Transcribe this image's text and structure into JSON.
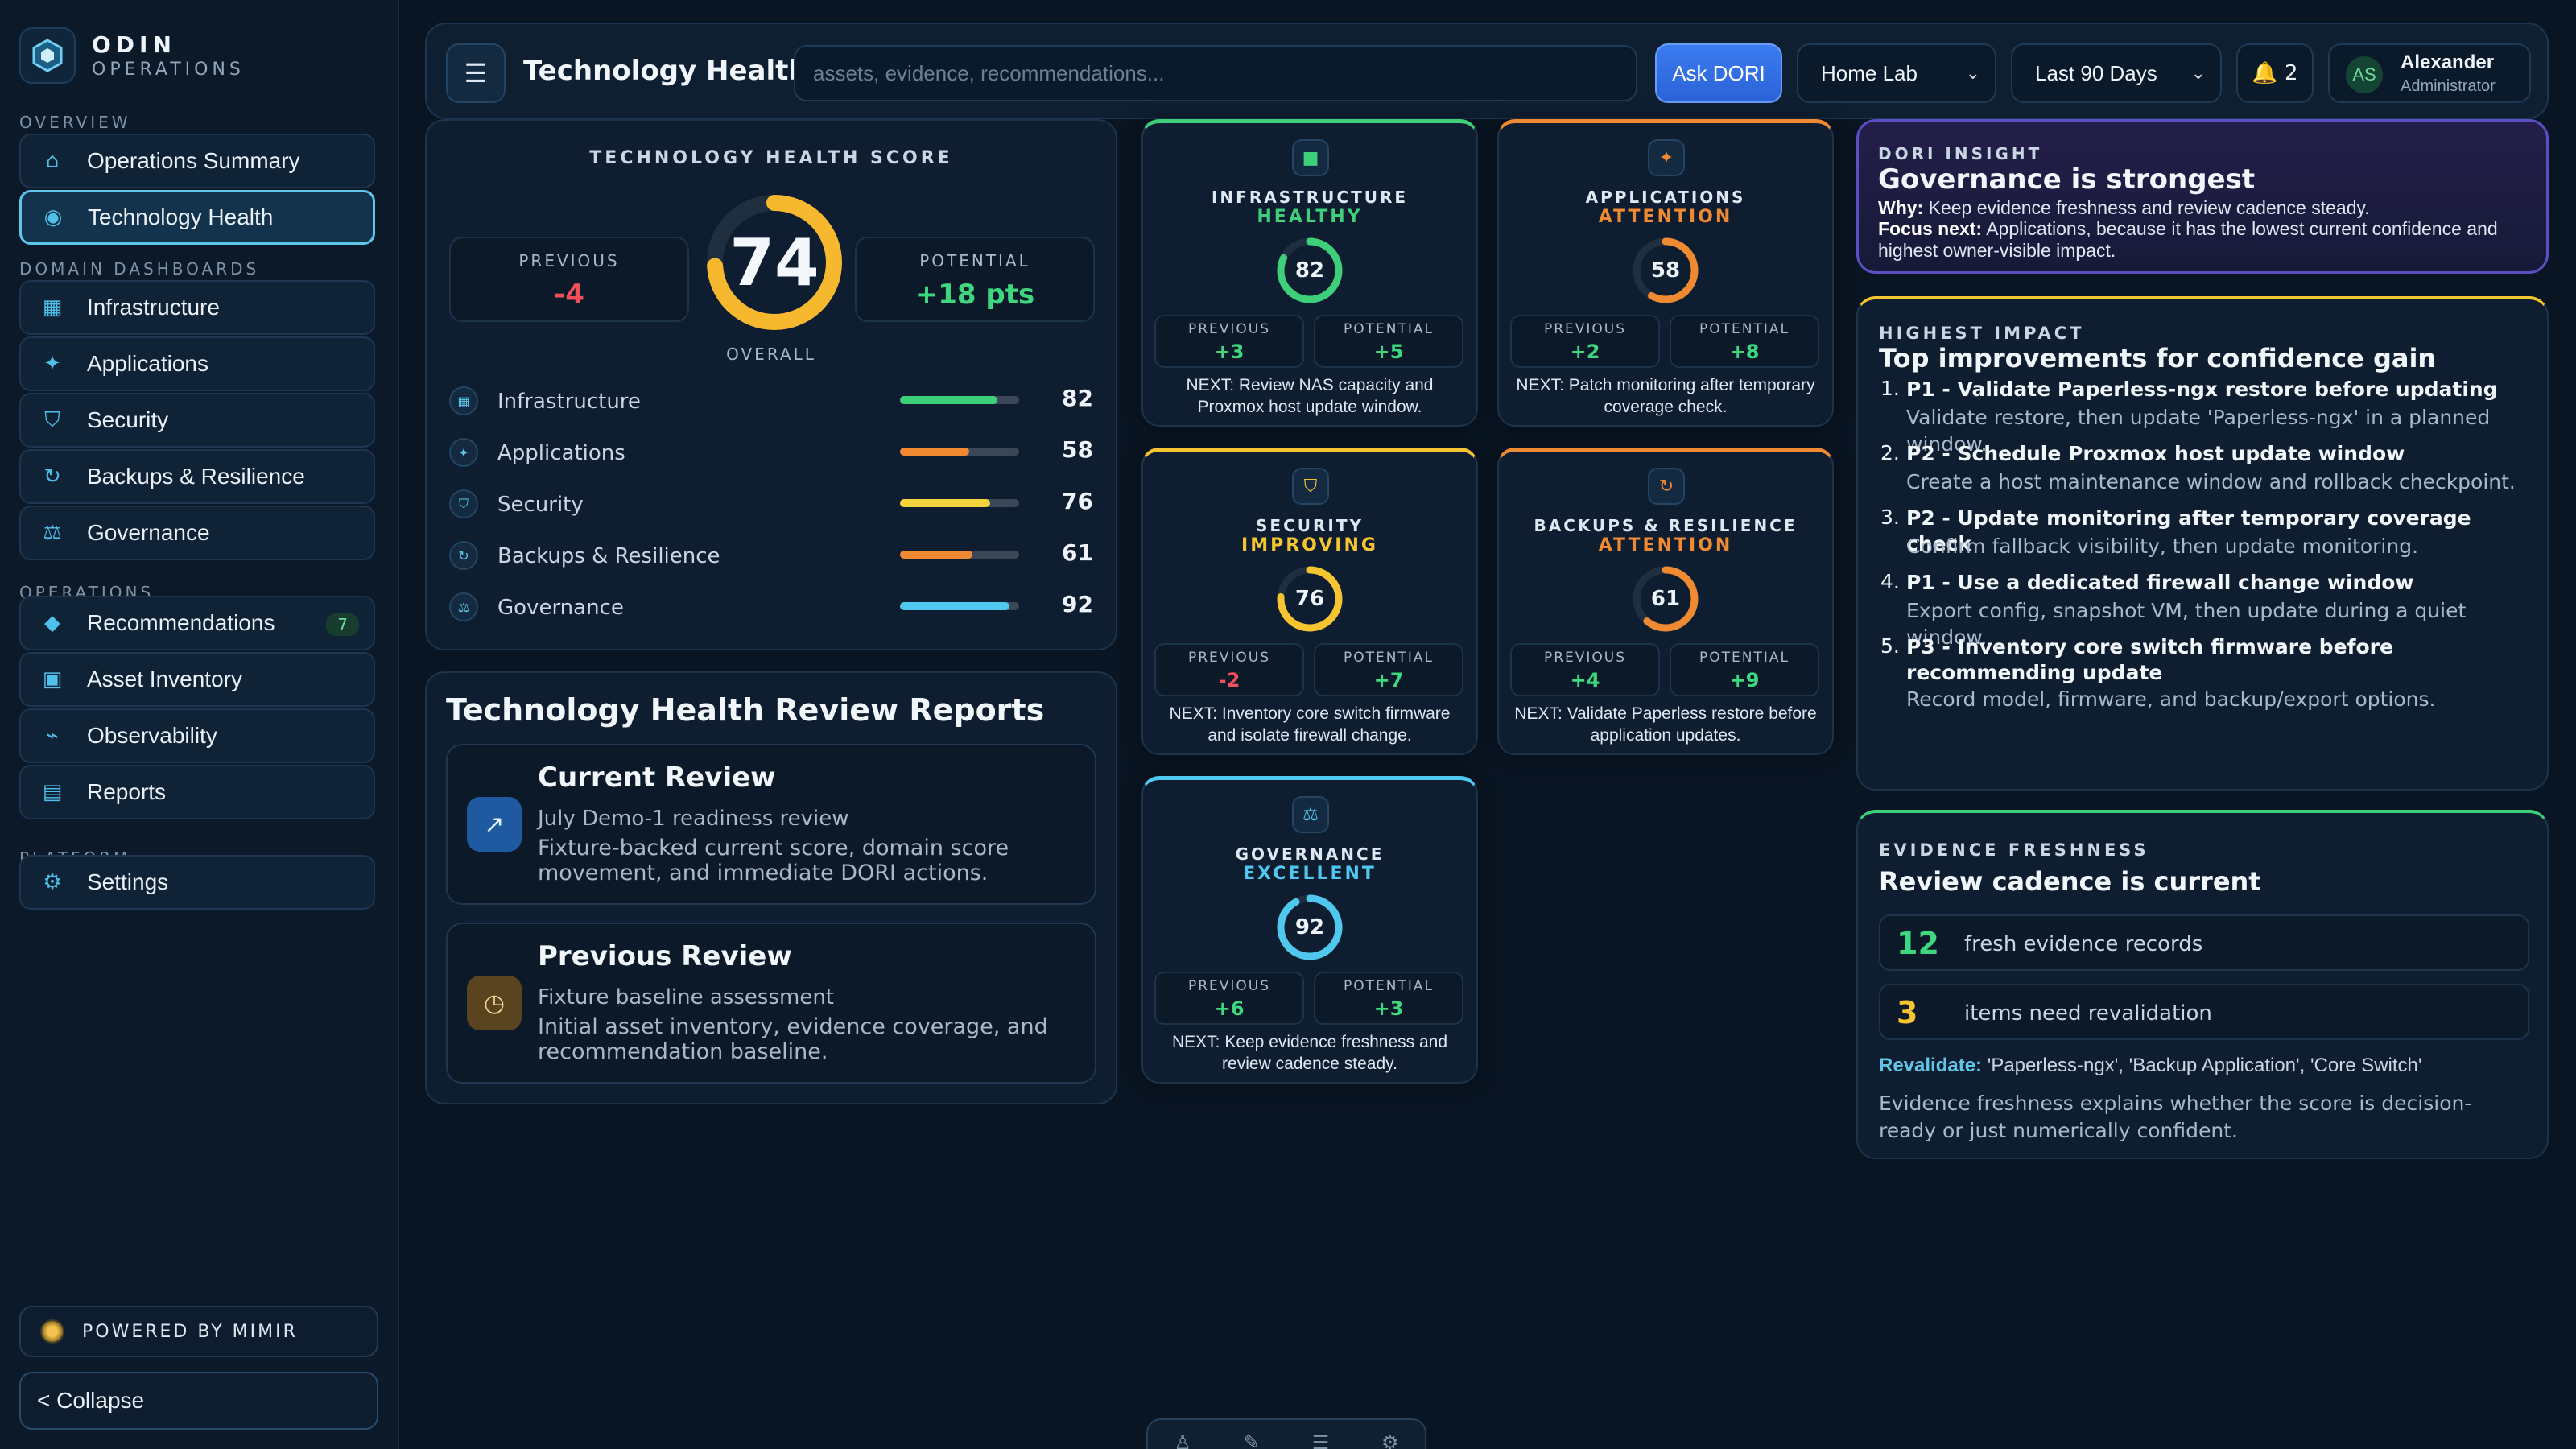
{
  "brand": {
    "name": "ODIN",
    "sub": "OPERATIONS"
  },
  "sidebar": {
    "overview_label": "OVERVIEW",
    "domain_label": "DOMAIN DASHBOARDS",
    "operations_label": "OPERATIONS",
    "platform_label": "PLATFORM",
    "items": [
      {
        "label": "Operations Summary",
        "icon": "home-icon",
        "glyph": "⌂"
      },
      {
        "label": "Technology Health",
        "icon": "radar-icon",
        "glyph": "◉",
        "active": true
      },
      {
        "label": "Infrastructure",
        "icon": "server-icon",
        "glyph": "▦"
      },
      {
        "label": "Applications",
        "icon": "sparkle-icon",
        "glyph": "✦"
      },
      {
        "label": "Security",
        "icon": "shield-icon",
        "glyph": "⛉"
      },
      {
        "label": "Backups & Resilience",
        "icon": "refresh-icon",
        "glyph": "↻"
      },
      {
        "label": "Governance",
        "icon": "scales-icon",
        "glyph": "⚖"
      },
      {
        "label": "Recommendations",
        "icon": "diamond-icon",
        "glyph": "◆",
        "badge": "7"
      },
      {
        "label": "Asset Inventory",
        "icon": "box-icon",
        "glyph": "▣"
      },
      {
        "label": "Observability",
        "icon": "pulse-icon",
        "glyph": "⌁"
      },
      {
        "label": "Reports",
        "icon": "document-icon",
        "glyph": "▤"
      },
      {
        "label": "Settings",
        "icon": "gear-icon",
        "glyph": "⚙"
      }
    ],
    "powered": "POWERED BY MIMIR",
    "collapse": "< Collapse"
  },
  "topbar": {
    "title": "Technology Health",
    "search_placeholder": "assets, evidence, recommendations...",
    "ask": "Ask DORI",
    "environment": "Home Lab",
    "range": "Last 90 Days",
    "notifications": "🔔 2",
    "user": {
      "initials": "AS",
      "name": "Alexander",
      "role": "Administrator"
    }
  },
  "score": {
    "title": "TECHNOLOGY HEALTH SCORE",
    "value": "74",
    "value_num": 74,
    "overall": "OVERALL",
    "previous_label": "PREVIOUS",
    "previous": "-4",
    "potential_label": "POTENTIAL",
    "potential": "+18 pts",
    "ring_color": "#f5b82e"
  },
  "domains": [
    {
      "name": "Infrastructure",
      "value": "82",
      "pct": 0.82,
      "color": "#3ecf7a",
      "glyph": "▦",
      "icon": "server-icon"
    },
    {
      "name": "Applications",
      "value": "58",
      "pct": 0.58,
      "color": "#f08a32",
      "glyph": "✦",
      "icon": "sparkle-icon"
    },
    {
      "name": "Security",
      "value": "76",
      "pct": 0.76,
      "color": "#f5d33d",
      "glyph": "⛉",
      "icon": "shield-icon"
    },
    {
      "name": "Backups & Resilience",
      "value": "61",
      "pct": 0.61,
      "color": "#f08a32",
      "glyph": "↻",
      "icon": "refresh-icon"
    },
    {
      "name": "Governance",
      "value": "92",
      "pct": 0.92,
      "color": "#4fc7ee",
      "glyph": "⚖",
      "icon": "scales-icon"
    }
  ],
  "reports": {
    "title": "Technology Health Review Reports",
    "items": [
      {
        "title": "Current Review",
        "sub": "July Demo-1 readiness review",
        "desc": "Fixture-backed current score, domain score movement, and immediate DORI actions.",
        "glyph": "↗",
        "icon": "trend-up-icon"
      },
      {
        "title": "Previous Review",
        "sub": "Fixture baseline assessment",
        "desc": "Initial asset inventory, evidence coverage, and recommendation baseline.",
        "glyph": "◷",
        "icon": "clock-icon"
      }
    ]
  },
  "domain_cards": [
    {
      "name": "INFRASTRUCTURE",
      "status": "HEALTHY",
      "score": "82",
      "pct": 0.82,
      "color": "#3ecf7a",
      "glyph": "■",
      "icon": "server-icon",
      "previous": "+3",
      "potential": "+5",
      "next": "NEXT: Review NAS capacity and Proxmox host update window."
    },
    {
      "name": "APPLICATIONS",
      "status": "ATTENTION",
      "score": "58",
      "pct": 0.58,
      "color": "#f08a32",
      "glyph": "✦",
      "icon": "sparkle-icon",
      "previous": "+2",
      "potential": "+8",
      "next": "NEXT: Patch monitoring after temporary coverage check."
    },
    {
      "name": "SECURITY",
      "status": "IMPROVING",
      "score": "76",
      "pct": 0.76,
      "color": "#f5c531",
      "glyph": "⛉",
      "icon": "shield-icon",
      "previous": "-2",
      "potential": "+7",
      "next": "NEXT: Inventory core switch firmware and isolate firewall change."
    },
    {
      "name": "BACKUPS & RESILIENCE",
      "status": "ATTENTION",
      "score": "61",
      "pct": 0.61,
      "color": "#f08a32",
      "glyph": "↻",
      "icon": "refresh-icon",
      "previous": "+4",
      "potential": "+9",
      "next": "NEXT: Validate Paperless restore before application updates."
    },
    {
      "name": "GOVERNANCE",
      "status": "EXCELLENT",
      "score": "92",
      "pct": 0.92,
      "color": "#4fc7ee",
      "glyph": "⚖",
      "icon": "scales-icon",
      "previous": "+6",
      "potential": "+3",
      "next": "NEXT: Keep evidence freshness and review cadence steady."
    }
  ],
  "card_labels": {
    "previous": "PREVIOUS",
    "potential": "POTENTIAL"
  },
  "insight": {
    "kicker": "DORI INSIGHT",
    "title": "Governance is strongest",
    "why_label": "Why:",
    "why": "Keep evidence freshness and review cadence steady.",
    "focus_label": "Focus next:",
    "focus": "Applications, because it has the lowest current confidence and highest owner-visible impact."
  },
  "impact": {
    "kicker": "HIGHEST IMPACT",
    "title": "Top improvements for confidence gain",
    "items": [
      {
        "n": "1.",
        "title": "P1 - Validate Paperless-ngx restore before updating",
        "desc": "Validate restore, then update 'Paperless-ngx' in a planned window."
      },
      {
        "n": "2.",
        "title": "P2 - Schedule Proxmox host update window",
        "desc": "Create a host maintenance window and rollback checkpoint."
      },
      {
        "n": "3.",
        "title": "P2 - Update monitoring after temporary coverage check",
        "desc": "Confirm fallback visibility, then update monitoring."
      },
      {
        "n": "4.",
        "title": "P1 - Use a dedicated firewall change window",
        "desc": "Export config, snapshot VM, then update during a quiet window."
      },
      {
        "n": "5.",
        "title": "P3 - Inventory core switch firmware before recommending update",
        "desc": "Record model, firmware, and backup/export options."
      }
    ]
  },
  "evidence": {
    "kicker": "EVIDENCE FRESHNESS",
    "title": "Review cadence is current",
    "fresh_count": "12",
    "fresh_label": "fresh evidence records",
    "reval_count": "3",
    "reval_label": "items need revalidation",
    "revalidate_label": "Revalidate:",
    "revalidate": "'Paperless-ngx', 'Backup Application', 'Core Switch'",
    "desc": "Evidence freshness explains whether the score is decision-ready or just numerically confident."
  },
  "dock": {
    "glyphs": [
      "♙",
      "✎",
      "☰",
      "⚙"
    ],
    "icons": [
      "user-icon",
      "edit-icon",
      "list-icon",
      "gear-icon"
    ]
  }
}
